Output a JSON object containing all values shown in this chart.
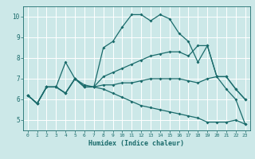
{
  "title": "",
  "xlabel": "Humidex (Indice chaleur)",
  "xlim": [
    -0.5,
    23.5
  ],
  "ylim": [
    4.5,
    10.5
  ],
  "xticks": [
    0,
    1,
    2,
    3,
    4,
    5,
    6,
    7,
    8,
    9,
    10,
    11,
    12,
    13,
    14,
    15,
    16,
    17,
    18,
    19,
    20,
    21,
    22,
    23
  ],
  "yticks": [
    5,
    6,
    7,
    8,
    9,
    10
  ],
  "bg_color": "#cce8e8",
  "grid_color": "#ffffff",
  "line_color": "#1a6b6b",
  "lines": [
    {
      "x": [
        0,
        1,
        2,
        3,
        4,
        5,
        6,
        7,
        8,
        9,
        10,
        11,
        12,
        13,
        14,
        15,
        16,
        17,
        18,
        19,
        20,
        21,
        22,
        23
      ],
      "y": [
        6.2,
        5.8,
        6.6,
        6.6,
        7.8,
        7.0,
        6.7,
        6.6,
        8.5,
        8.8,
        9.5,
        10.1,
        10.1,
        9.8,
        10.1,
        9.9,
        9.2,
        8.8,
        7.8,
        8.6,
        7.1,
        7.1,
        6.5,
        6.0
      ]
    },
    {
      "x": [
        0,
        1,
        2,
        3,
        4,
        5,
        6,
        7,
        8,
        9,
        10,
        11,
        12,
        13,
        14,
        15,
        16,
        17,
        18,
        19,
        20,
        21,
        22,
        23
      ],
      "y": [
        6.2,
        5.8,
        6.6,
        6.6,
        6.3,
        7.0,
        6.6,
        6.6,
        7.1,
        7.3,
        7.5,
        7.7,
        7.9,
        8.1,
        8.2,
        8.3,
        8.3,
        8.1,
        8.6,
        8.6,
        7.1,
        7.1,
        6.5,
        6.0
      ]
    },
    {
      "x": [
        0,
        1,
        2,
        3,
        4,
        5,
        6,
        7,
        8,
        9,
        10,
        11,
        12,
        13,
        14,
        15,
        16,
        17,
        18,
        19,
        20,
        21,
        22,
        23
      ],
      "y": [
        6.2,
        5.8,
        6.6,
        6.6,
        6.3,
        7.0,
        6.6,
        6.6,
        6.7,
        6.7,
        6.8,
        6.8,
        6.9,
        7.0,
        7.0,
        7.0,
        7.0,
        6.9,
        6.8,
        7.0,
        7.1,
        6.5,
        6.0,
        4.8
      ]
    },
    {
      "x": [
        0,
        1,
        2,
        3,
        4,
        5,
        6,
        7,
        8,
        9,
        10,
        11,
        12,
        13,
        14,
        15,
        16,
        17,
        18,
        19,
        20,
        21,
        22,
        23
      ],
      "y": [
        6.2,
        5.8,
        6.6,
        6.6,
        6.3,
        7.0,
        6.6,
        6.6,
        6.5,
        6.3,
        6.1,
        5.9,
        5.7,
        5.6,
        5.5,
        5.4,
        5.3,
        5.2,
        5.1,
        4.9,
        4.9,
        4.9,
        5.0,
        4.8
      ]
    }
  ],
  "marker": "D",
  "markersize": 2.0,
  "linewidth": 0.9
}
